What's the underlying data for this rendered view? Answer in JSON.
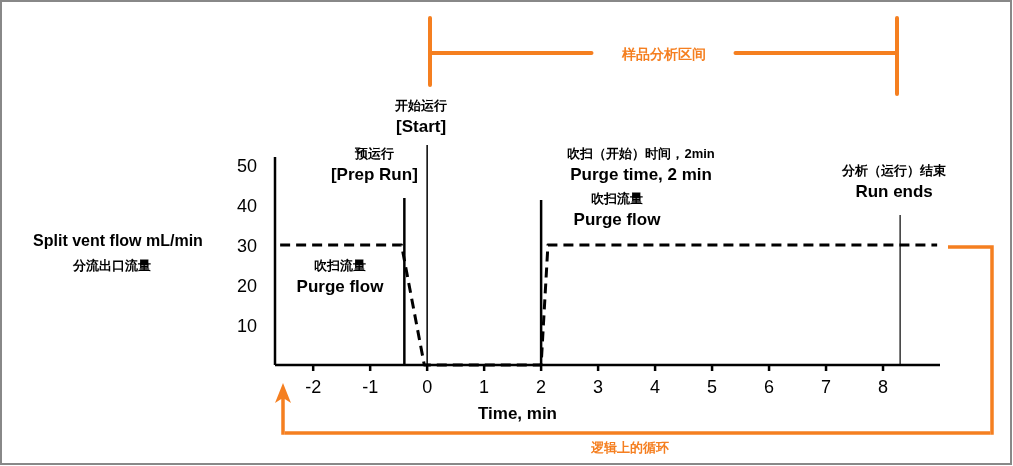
{
  "chart_data": {
    "type": "line",
    "xlabel": "Time, min",
    "ylabel": "Split vent flow mL/min\n分流出口流量",
    "xlim": [
      -2.67,
      9.0
    ],
    "xticks": [
      -2,
      -1,
      0,
      1,
      2,
      3,
      4,
      5,
      6,
      7,
      8
    ],
    "ylim": [
      0,
      52
    ],
    "yticks": [
      10,
      20,
      30,
      40,
      50
    ],
    "series": [
      {
        "color": "#000000",
        "line_style": "dashed",
        "x": [
          -2.58,
          -0.45,
          -0.05,
          2.0,
          2.12,
          8.95
        ],
        "values": [
          30,
          30,
          0,
          0,
          30,
          30
        ]
      }
    ],
    "ref_lines": [
      {
        "axis": "x",
        "value": -0.4,
        "label": "预运行\n[Prep Run]",
        "color": "#000000"
      },
      {
        "axis": "x",
        "value": 0,
        "label": "开始运行\n[Start]",
        "color": "#000000"
      },
      {
        "axis": "x",
        "value": 2.0,
        "label": "吹扫（开始）时间，2min\nPurge time, 2 min",
        "color": "#000000"
      },
      {
        "axis": "x",
        "value": 8.3,
        "label": "分析（运行）结束\nRun ends",
        "color": "#000000"
      }
    ],
    "annotations": [
      "吹扫流量\nPurge flow",
      "吹扫流量\nPurge flow",
      "样品分析区间",
      "逻辑上的循环"
    ]
  }
}
